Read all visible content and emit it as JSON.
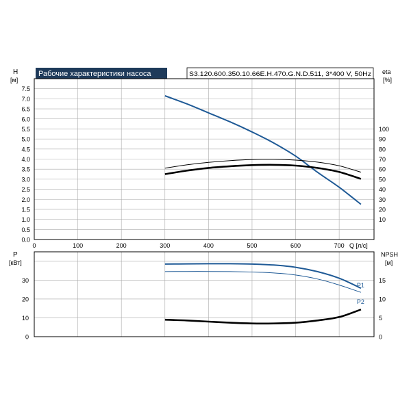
{
  "header": {
    "title": "Рабочие характеристики насоса",
    "model": "S3.120.600.350.10.66E.H.470.G.N.D.511, 3*400 V, 50Hz"
  },
  "colors": {
    "blue": "#1f5a96",
    "black": "#000000",
    "grid": "#a9a9a9",
    "title_bg": "#1e3a5a"
  },
  "chart_data": [
    {
      "type": "line",
      "x_label": "Q [л/с]",
      "x_ticks": [
        "0",
        "100",
        "200",
        "300",
        "400",
        "500",
        "600",
        "700"
      ],
      "xlim": [
        0,
        780
      ],
      "y_left": {
        "label_top": "H",
        "label_unit": "[м]",
        "ylim": [
          0,
          8
        ],
        "ticks": [
          "0.0",
          "0.5",
          "1.0",
          "1.5",
          "2.0",
          "2.5",
          "3.0",
          "3.5",
          "4.0",
          "4.5",
          "5.0",
          "5.5",
          "6.0",
          "6.5",
          "7.0",
          "7.5"
        ]
      },
      "y_right": {
        "label_top": "eta",
        "label_unit": "[%]",
        "ticks": [
          "10",
          "20",
          "30",
          "40",
          "50",
          "60",
          "70",
          "80",
          "90",
          "100"
        ]
      },
      "grid": true,
      "series": [
        {
          "role": "head",
          "axis": "left",
          "color": "#1f5a96",
          "width": 2,
          "points": [
            [
              300,
              7.15
            ],
            [
              350,
              6.75
            ],
            [
              400,
              6.3
            ],
            [
              450,
              5.85
            ],
            [
              500,
              5.35
            ],
            [
              550,
              4.8
            ],
            [
              600,
              4.15
            ],
            [
              650,
              3.35
            ],
            [
              700,
              2.6
            ],
            [
              750,
              1.75
            ]
          ]
        },
        {
          "role": "efficiency-thin",
          "axis": "right",
          "color": "#000000",
          "width": 1,
          "points": [
            [
              300,
              61
            ],
            [
              350,
              64.3
            ],
            [
              400,
              66.8
            ],
            [
              450,
              68.5
            ],
            [
              500,
              69.6
            ],
            [
              550,
              69.8
            ],
            [
              600,
              69
            ],
            [
              650,
              67
            ],
            [
              700,
              63.3
            ],
            [
              750,
              57
            ]
          ]
        },
        {
          "role": "efficiency-thick",
          "axis": "right",
          "color": "#000000",
          "width": 2.6,
          "points": [
            [
              300,
              55
            ],
            [
              350,
              58.5
            ],
            [
              400,
              61.2
            ],
            [
              450,
              62.9
            ],
            [
              500,
              64
            ],
            [
              550,
              64.3
            ],
            [
              600,
              63.5
            ],
            [
              650,
              61.2
            ],
            [
              700,
              57.2
            ],
            [
              750,
              50.3
            ]
          ]
        }
      ]
    },
    {
      "type": "line",
      "xlim": [
        0,
        780
      ],
      "y_left": {
        "label_top": "P",
        "label_unit": "[кВт]",
        "ylim": [
          0,
          45
        ],
        "ticks": [
          "0",
          "10",
          "20",
          "30"
        ]
      },
      "y_right": {
        "label_top": "NPSH",
        "label_unit": "[м]",
        "ticks": [
          "0",
          "5",
          "10",
          "15"
        ]
      },
      "grid": true,
      "series": [
        {
          "name": "P1",
          "axis": "left",
          "color": "#1f5a96",
          "width": 2,
          "points": [
            [
              300,
              38.5
            ],
            [
              350,
              38.6
            ],
            [
              400,
              38.7
            ],
            [
              450,
              38.7
            ],
            [
              500,
              38.5
            ],
            [
              550,
              38
            ],
            [
              600,
              36.8
            ],
            [
              650,
              34.5
            ],
            [
              700,
              31
            ],
            [
              750,
              25.7
            ]
          ]
        },
        {
          "name": "P2",
          "axis": "left",
          "color": "#1f5a96",
          "width": 1,
          "points": [
            [
              300,
              34.5
            ],
            [
              350,
              34.6
            ],
            [
              400,
              34.6
            ],
            [
              450,
              34.5
            ],
            [
              500,
              34.3
            ],
            [
              550,
              33.8
            ],
            [
              600,
              32.7
            ],
            [
              650,
              30.6
            ],
            [
              700,
              27.4
            ],
            [
              750,
              23.5
            ]
          ]
        },
        {
          "role": "npsh",
          "axis": "right",
          "color": "#000000",
          "width": 2.6,
          "points": [
            [
              300,
              4.5
            ],
            [
              350,
              4.3
            ],
            [
              400,
              4.0
            ],
            [
              450,
              3.7
            ],
            [
              500,
              3.5
            ],
            [
              550,
              3.5
            ],
            [
              600,
              3.7
            ],
            [
              650,
              4.3
            ],
            [
              700,
              5.2
            ],
            [
              750,
              7.2
            ]
          ]
        }
      ]
    }
  ]
}
